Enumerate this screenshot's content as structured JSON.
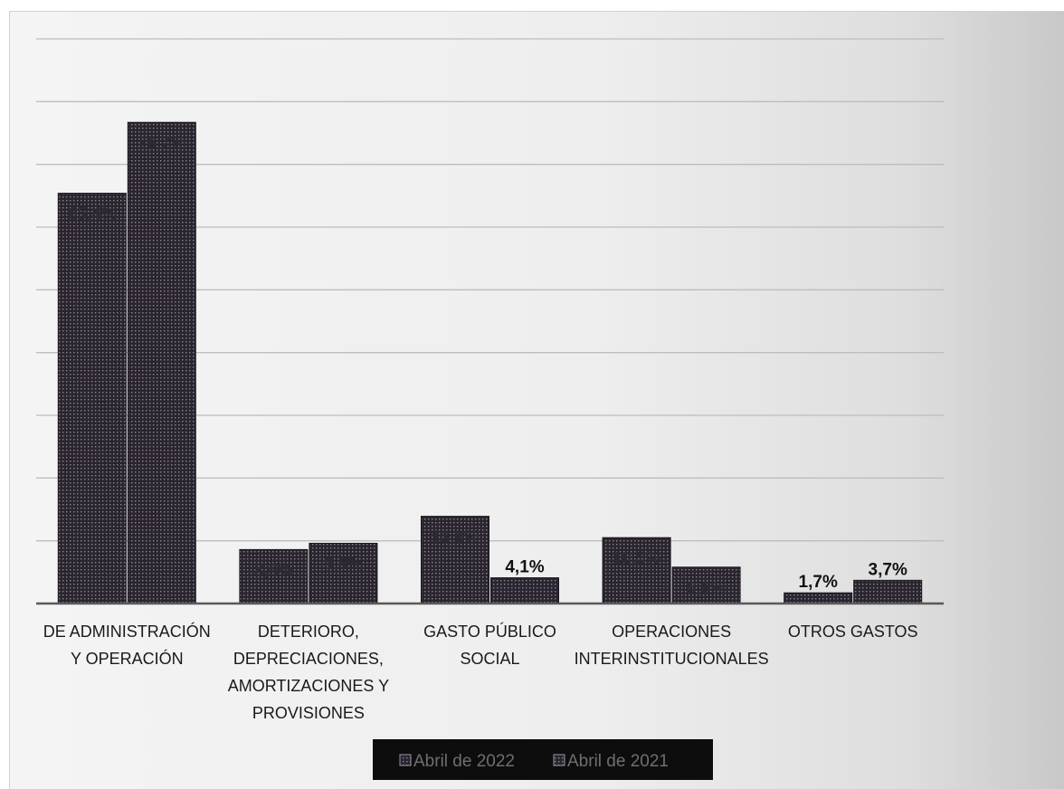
{
  "chart_data": {
    "type": "bar",
    "categories": [
      [
        "DE ADMINISTRACIÓN",
        "Y OPERACIÓN"
      ],
      [
        "DETERIORO,",
        "DEPRECIACIONES,",
        "AMORTIZACIONES Y",
        "PROVISIONES"
      ],
      [
        "GASTO PÚBLICO",
        "SOCIAL"
      ],
      [
        "OPERACIONES",
        "INTERINSTITUCIONALES"
      ],
      [
        "OTROS GASTOS"
      ]
    ],
    "series": [
      {
        "name": "Abril de 2022",
        "values": [
          65.4,
          8.6,
          13.9,
          10.5,
          1.7
        ],
        "labels": [
          "65,4%",
          "8,6%",
          "13,9%",
          "10,5%",
          "1,7%"
        ]
      },
      {
        "name": "Abril de 2021",
        "values": [
          76.7,
          9.6,
          4.1,
          5.8,
          3.7
        ],
        "labels": [
          "76,7%",
          "9,6%",
          "4,1%",
          "5,8%",
          "3,7%"
        ]
      }
    ],
    "ylim": [
      0,
      90
    ],
    "grid": true,
    "legend_position": "bottom",
    "colors": {
      "bar_fill": "#2b2530",
      "bar_dots": "#8a8590",
      "gridline": "#bdbdbd",
      "axis": "#595959",
      "legend_bg": "#0d0d0d"
    }
  }
}
